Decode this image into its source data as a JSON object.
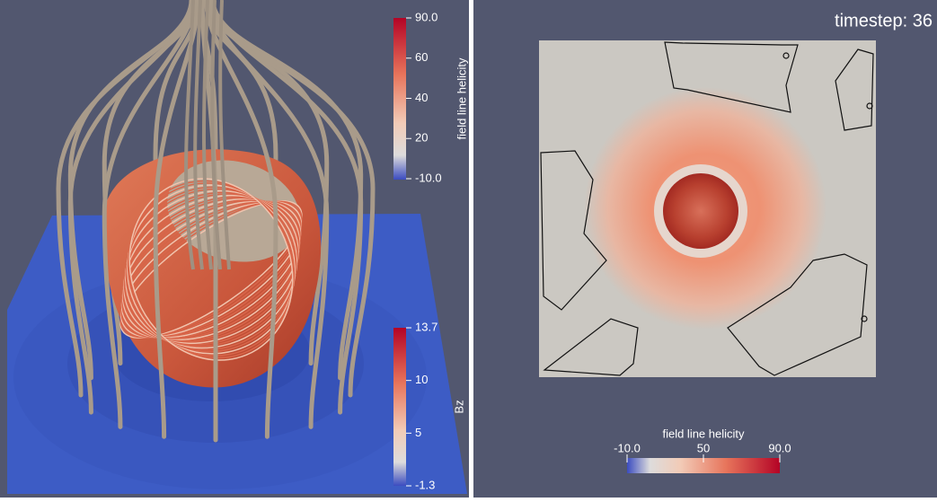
{
  "left_view": {
    "colorbars": [
      {
        "title": "field line helicity",
        "ticks": [
          "90.0",
          "60",
          "40",
          "20",
          "-10.0"
        ]
      },
      {
        "title": "Bz",
        "ticks": [
          "13.7",
          "10",
          "5",
          "-1.3"
        ]
      }
    ]
  },
  "right_view": {
    "timestep": "timestep:  36",
    "colorbar": {
      "title": "field line helicity",
      "ticks": [
        "-10.0",
        "50",
        "90.0"
      ]
    }
  }
}
